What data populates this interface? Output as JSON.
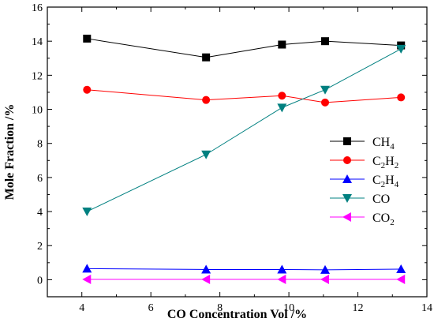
{
  "chart_data": {
    "type": "line",
    "xlabel": "CO Concentration Vol /%",
    "ylabel": "Mole Fraction /%",
    "xlim": [
      3,
      14
    ],
    "ylim": [
      -1,
      16
    ],
    "x_ticks": [
      4,
      6,
      8,
      10,
      12,
      14
    ],
    "y_ticks": [
      0,
      2,
      4,
      6,
      8,
      10,
      12,
      14,
      16
    ],
    "grid": false,
    "legend_position": "right",
    "x": [
      4.15,
      7.6,
      9.8,
      11.05,
      13.25
    ],
    "series": [
      {
        "name": "CH4",
        "base": "CH",
        "sub": "4",
        "color": "#000000",
        "marker": "square",
        "values": [
          14.15,
          13.05,
          13.8,
          14.0,
          13.75
        ]
      },
      {
        "name": "C2H2",
        "base": "C",
        "sub": "2",
        "base2": "H",
        "sub2": "2",
        "color": "#ff0000",
        "marker": "circle",
        "values": [
          11.15,
          10.55,
          10.8,
          10.4,
          10.7
        ]
      },
      {
        "name": "C2H4",
        "base": "C",
        "sub": "2",
        "base2": "H",
        "sub2": "4",
        "color": "#0000ff",
        "marker": "triangle-up",
        "values": [
          0.65,
          0.6,
          0.6,
          0.58,
          0.62
        ]
      },
      {
        "name": "CO",
        "base": "CO",
        "color": "#008080",
        "marker": "triangle-down",
        "values": [
          4.0,
          7.35,
          10.1,
          11.15,
          13.55
        ]
      },
      {
        "name": "CO2",
        "base": "CO",
        "sub": "2",
        "color": "#ff00ff",
        "marker": "triangle-left",
        "values": [
          0.02,
          0.02,
          0.02,
          0.02,
          0.02
        ]
      }
    ]
  }
}
